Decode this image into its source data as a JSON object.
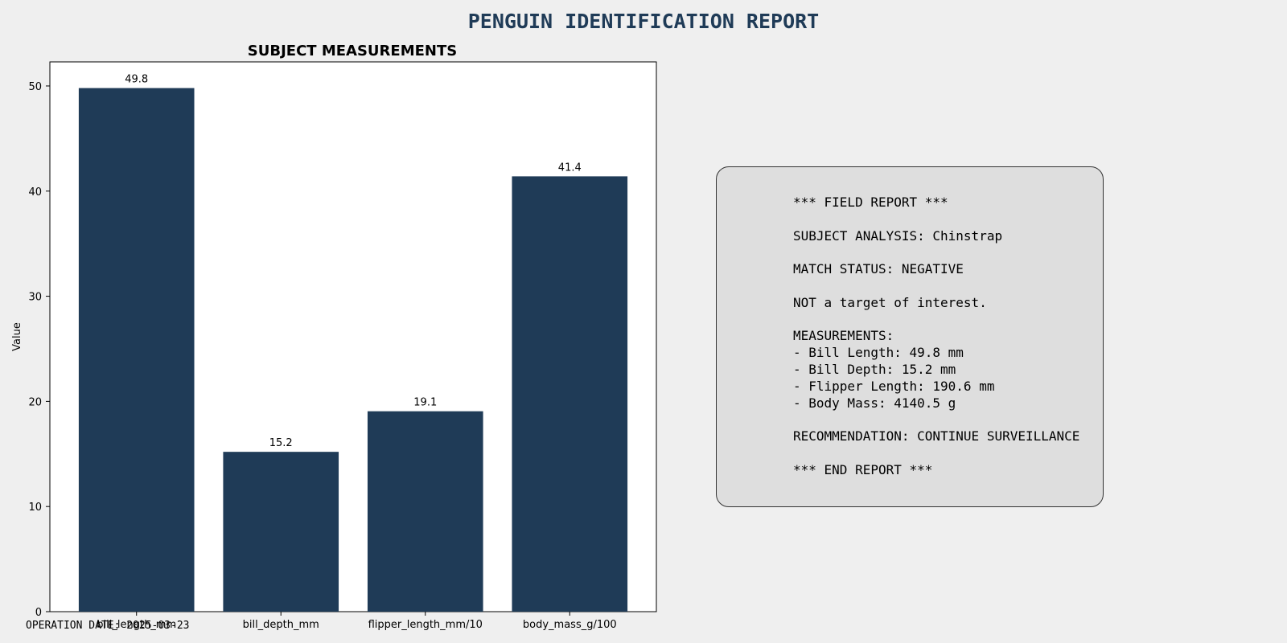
{
  "title": "PENGUIN IDENTIFICATION REPORT",
  "chart_data": {
    "type": "bar",
    "title": "SUBJECT MEASUREMENTS",
    "xlabel": "",
    "ylabel": "Value",
    "categories": [
      "bill_length_mm",
      "bill_depth_mm",
      "flipper_length_mm/10",
      "body_mass_g/100"
    ],
    "values": [
      49.8,
      15.2,
      19.06,
      41.405
    ],
    "data_labels": [
      "49.8",
      "15.2",
      "19.1",
      "41.4"
    ],
    "ylim": [
      0,
      52.29
    ],
    "yticks": [
      0,
      10,
      20,
      30,
      40,
      50
    ],
    "grid": false,
    "bar_color": "#1f3b57"
  },
  "report": {
    "lines": [
      "*** FIELD REPORT ***",
      "",
      "SUBJECT ANALYSIS: Chinstrap",
      "",
      "MATCH STATUS: NEGATIVE",
      "",
      "NOT a target of interest.",
      "",
      "MEASUREMENTS:",
      "- Bill Length: 49.8 mm",
      "- Bill Depth: 15.2 mm",
      "- Flipper Length: 190.6 mm",
      "- Body Mass: 4140.5 g",
      "",
      "RECOMMENDATION: CONTINUE SURVEILLANCE",
      "",
      "*** END REPORT ***"
    ]
  },
  "footer": "OPERATION DATE: 2025-03-23",
  "colors": {
    "background": "#efefef",
    "accent": "#1f3b57",
    "panel": "#dedede"
  }
}
